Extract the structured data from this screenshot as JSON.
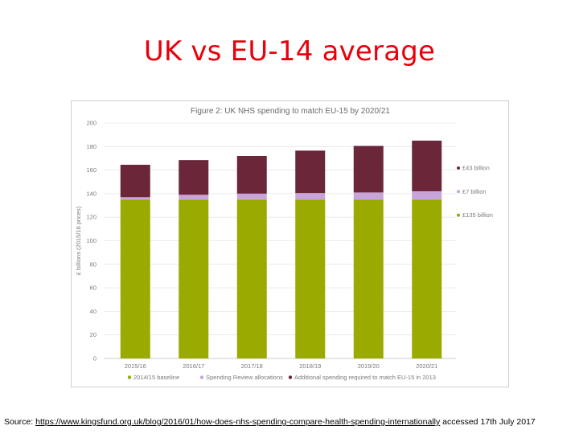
{
  "slide": {
    "title": "UK vs EU-14 average",
    "source_prefix": "Source: ",
    "source_link": "https://www.kingsfund.org.uk/blog/2016/01/how-does-nhs-spending-compare-health-spending-internationally",
    "source_suffix": " accessed 17th July 2017"
  },
  "chart_data": {
    "type": "bar",
    "stacked": true,
    "title": "Figure 2: UK NHS spending to match EU-15 by 2020/21",
    "ylabel": "£ billions (2015/16 prices)",
    "xlabel": "",
    "ylim": [
      0,
      200
    ],
    "yticks": [
      0,
      20,
      40,
      60,
      80,
      100,
      120,
      140,
      160,
      180,
      200
    ],
    "grid": true,
    "legend_position": "bottom",
    "categories": [
      "2015/16",
      "2016/17",
      "2017/18",
      "2018/19",
      "2019/20",
      "2020/21"
    ],
    "series": [
      {
        "name": "2014/15 baseline",
        "color": "#9aaa00",
        "values": [
          135,
          135,
          135,
          135,
          135,
          135
        ]
      },
      {
        "name": "Spending Review allocations",
        "color": "#c9a3dc",
        "values": [
          2,
          4,
          5,
          5.5,
          6,
          7
        ]
      },
      {
        "name": "Additional spending required to match EU-15 in 2013",
        "color": "#6b2639",
        "values": [
          27.5,
          29.5,
          32,
          36,
          39.5,
          43
        ]
      }
    ],
    "end_labels": [
      {
        "text": "£43 billion",
        "color": "#6b2639"
      },
      {
        "text": "£7 billion",
        "color": "#c9a3dc"
      },
      {
        "text": "£135 billion",
        "color": "#9aaa00"
      }
    ]
  }
}
